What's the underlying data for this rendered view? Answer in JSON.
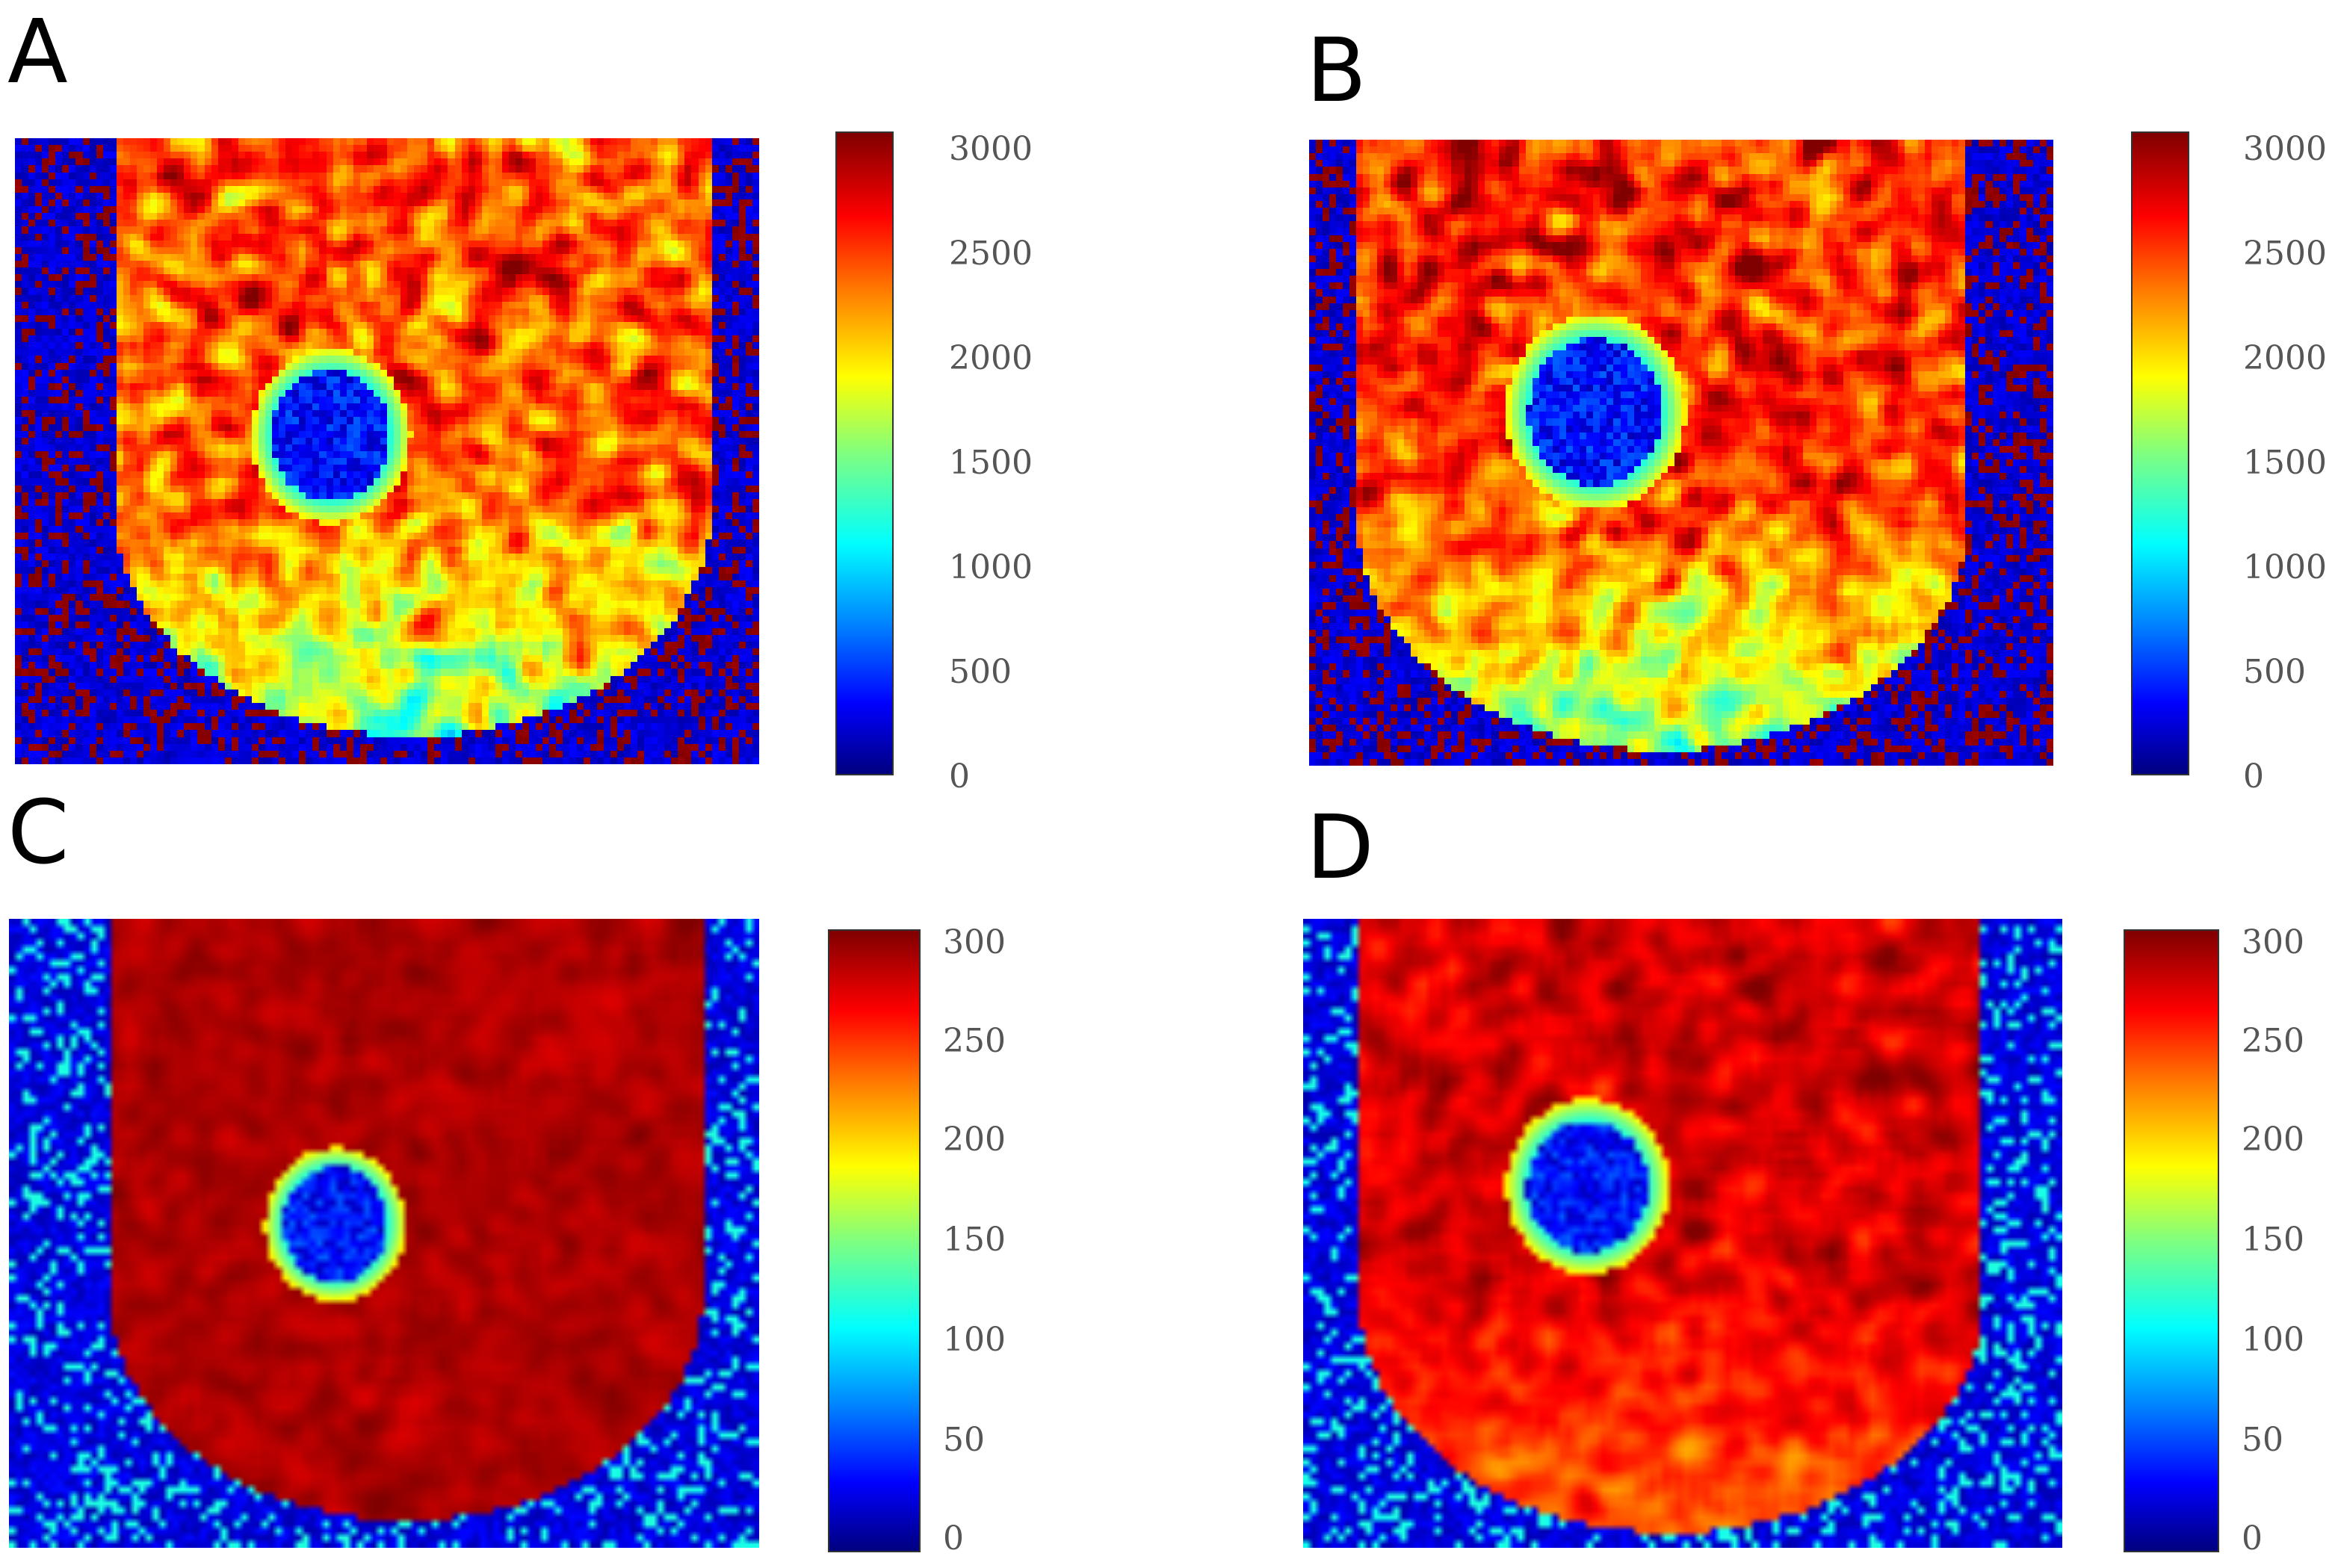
{
  "panels": [
    {
      "label": "A",
      "colorbar_ticks": [
        "0",
        "500",
        "1000",
        "1500",
        "2000",
        "2500",
        "3000"
      ]
    },
    {
      "label": "B",
      "colorbar_ticks": [
        "0",
        "500",
        "1000",
        "1500",
        "2000",
        "2500",
        "3000"
      ]
    },
    {
      "label": "C",
      "colorbar_ticks": [
        "0",
        "50",
        "100",
        "150",
        "200",
        "250",
        "300"
      ]
    },
    {
      "label": "D",
      "colorbar_ticks": [
        "0",
        "50",
        "100",
        "150",
        "200",
        "250",
        "300"
      ]
    }
  ],
  "colormap": "jet"
}
